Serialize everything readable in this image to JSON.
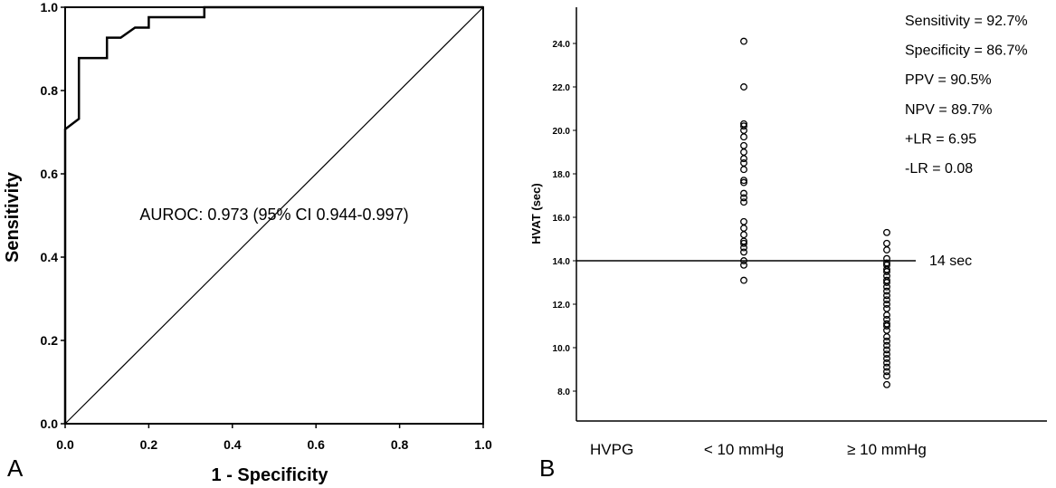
{
  "chart_data": [
    {
      "panel": "A",
      "type": "line",
      "xlabel": "1 - Specificity",
      "ylabel": "Sensitivity",
      "xlim": [
        0.0,
        1.0
      ],
      "ylim": [
        0.0,
        1.0
      ],
      "x_ticks": [
        "0.0",
        "0.2",
        "0.4",
        "0.6",
        "0.8",
        "1.0"
      ],
      "y_ticks": [
        "0.0",
        "0.2",
        "0.4",
        "0.6",
        "0.8",
        "1.0"
      ],
      "annotation": "AUROC: 0.973 (95% CI 0.944-0.997)",
      "grid": false,
      "series": [
        {
          "points": [
            [
              0.0,
              0.0
            ],
            [
              0.0,
              0.707
            ],
            [
              0.033,
              0.732
            ],
            [
              0.033,
              0.878
            ],
            [
              0.1,
              0.878
            ],
            [
              0.1,
              0.927
            ],
            [
              0.133,
              0.927
            ],
            [
              0.167,
              0.951
            ],
            [
              0.2,
              0.951
            ],
            [
              0.2,
              0.976
            ],
            [
              0.333,
              0.976
            ],
            [
              0.333,
              1.0
            ],
            [
              1.0,
              1.0
            ]
          ]
        },
        {
          "points": [
            [
              0.0,
              0.0
            ],
            [
              1.0,
              1.0
            ]
          ]
        }
      ]
    },
    {
      "panel": "B",
      "type": "scatter",
      "ylabel": "HVAT (sec)",
      "xlabel": "HVPG",
      "categories": [
        "< 10 mmHg",
        "≥ 10 mmHg"
      ],
      "ylim": [
        7.0,
        25.0
      ],
      "y_ticks": [
        "8.0",
        "10.0",
        "12.0",
        "14.0",
        "16.0",
        "18.0",
        "20.0",
        "22.0",
        "24.0"
      ],
      "cutoff": {
        "value": 14.0,
        "label": "14 sec"
      },
      "stats": [
        "Sensitivity = 92.7%",
        "Specificity = 86.7%",
        "PPV = 90.5%",
        "NPV = 89.7%",
        "+LR = 6.95",
        "-LR = 0.08"
      ],
      "series": [
        {
          "category": "< 10 mmHg",
          "values": [
            24.1,
            22.0,
            20.3,
            20.2,
            20.0,
            19.7,
            19.3,
            19.0,
            18.7,
            18.5,
            18.2,
            17.7,
            17.6,
            17.1,
            16.9,
            16.7,
            15.8,
            15.5,
            15.2,
            14.9,
            14.8,
            14.6,
            14.4,
            14.0,
            13.8,
            13.1
          ]
        },
        {
          "category": "≥ 10 mmHg",
          "values": [
            15.3,
            14.8,
            14.5,
            14.1,
            13.9,
            13.8,
            13.6,
            13.5,
            13.3,
            13.1,
            13.0,
            12.8,
            12.6,
            12.4,
            12.2,
            12.0,
            11.8,
            11.5,
            11.3,
            11.1,
            11.0,
            10.8,
            10.5,
            10.3,
            10.1,
            9.9,
            9.7,
            9.5,
            9.3,
            9.1,
            8.9,
            8.7,
            8.3
          ]
        }
      ]
    }
  ]
}
